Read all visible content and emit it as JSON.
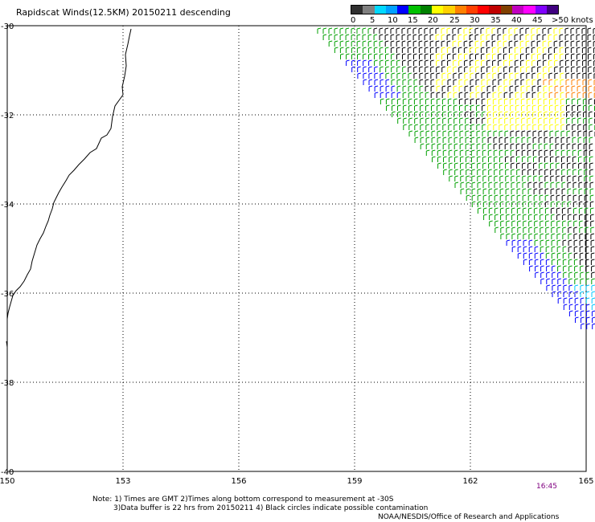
{
  "title": "Rapidscat Winds(12.5KM) 20150211 descending",
  "colorbar": {
    "colors": [
      "#303030",
      "#808080",
      "#00d8ff",
      "#00a0ff",
      "#0000ff",
      "#00c000",
      "#008000",
      "#ffff00",
      "#ffd000",
      "#ff8000",
      "#ff4000",
      "#ff0000",
      "#c00000",
      "#804000",
      "#c000c0",
      "#ff00ff",
      "#8000ff",
      "#400080"
    ],
    "labels": [
      "0",
      "5",
      "10",
      "15",
      "20",
      "25",
      "30",
      "35",
      "40",
      "45",
      ">50 knots"
    ]
  },
  "map": {
    "lon_range": [
      150,
      165
    ],
    "lat_range": [
      -30,
      -40
    ],
    "lon_ticks": [
      "150",
      "153",
      "156",
      "159",
      "162",
      "165"
    ],
    "lat_ticks": [
      "-30",
      "-32",
      "-34",
      "-36",
      "-38",
      "-40"
    ],
    "grid": "dotted",
    "coastline_color": "#000000",
    "wind_swath_colors": [
      "#000000",
      "#ffff00",
      "#00a000",
      "#0000ff",
      "#00c8ff",
      "#ff8000"
    ]
  },
  "time_label": "16:45",
  "notes": {
    "line1": "Note: 1) Times are GMT 2)Times along bottom correspond to measurement at -30S",
    "line2": "3)Data buffer is 22 hrs from 20150211 4) Black circles indicate possible contamination",
    "line3": "NOAA/NESDIS/Office of Research and Applications"
  }
}
